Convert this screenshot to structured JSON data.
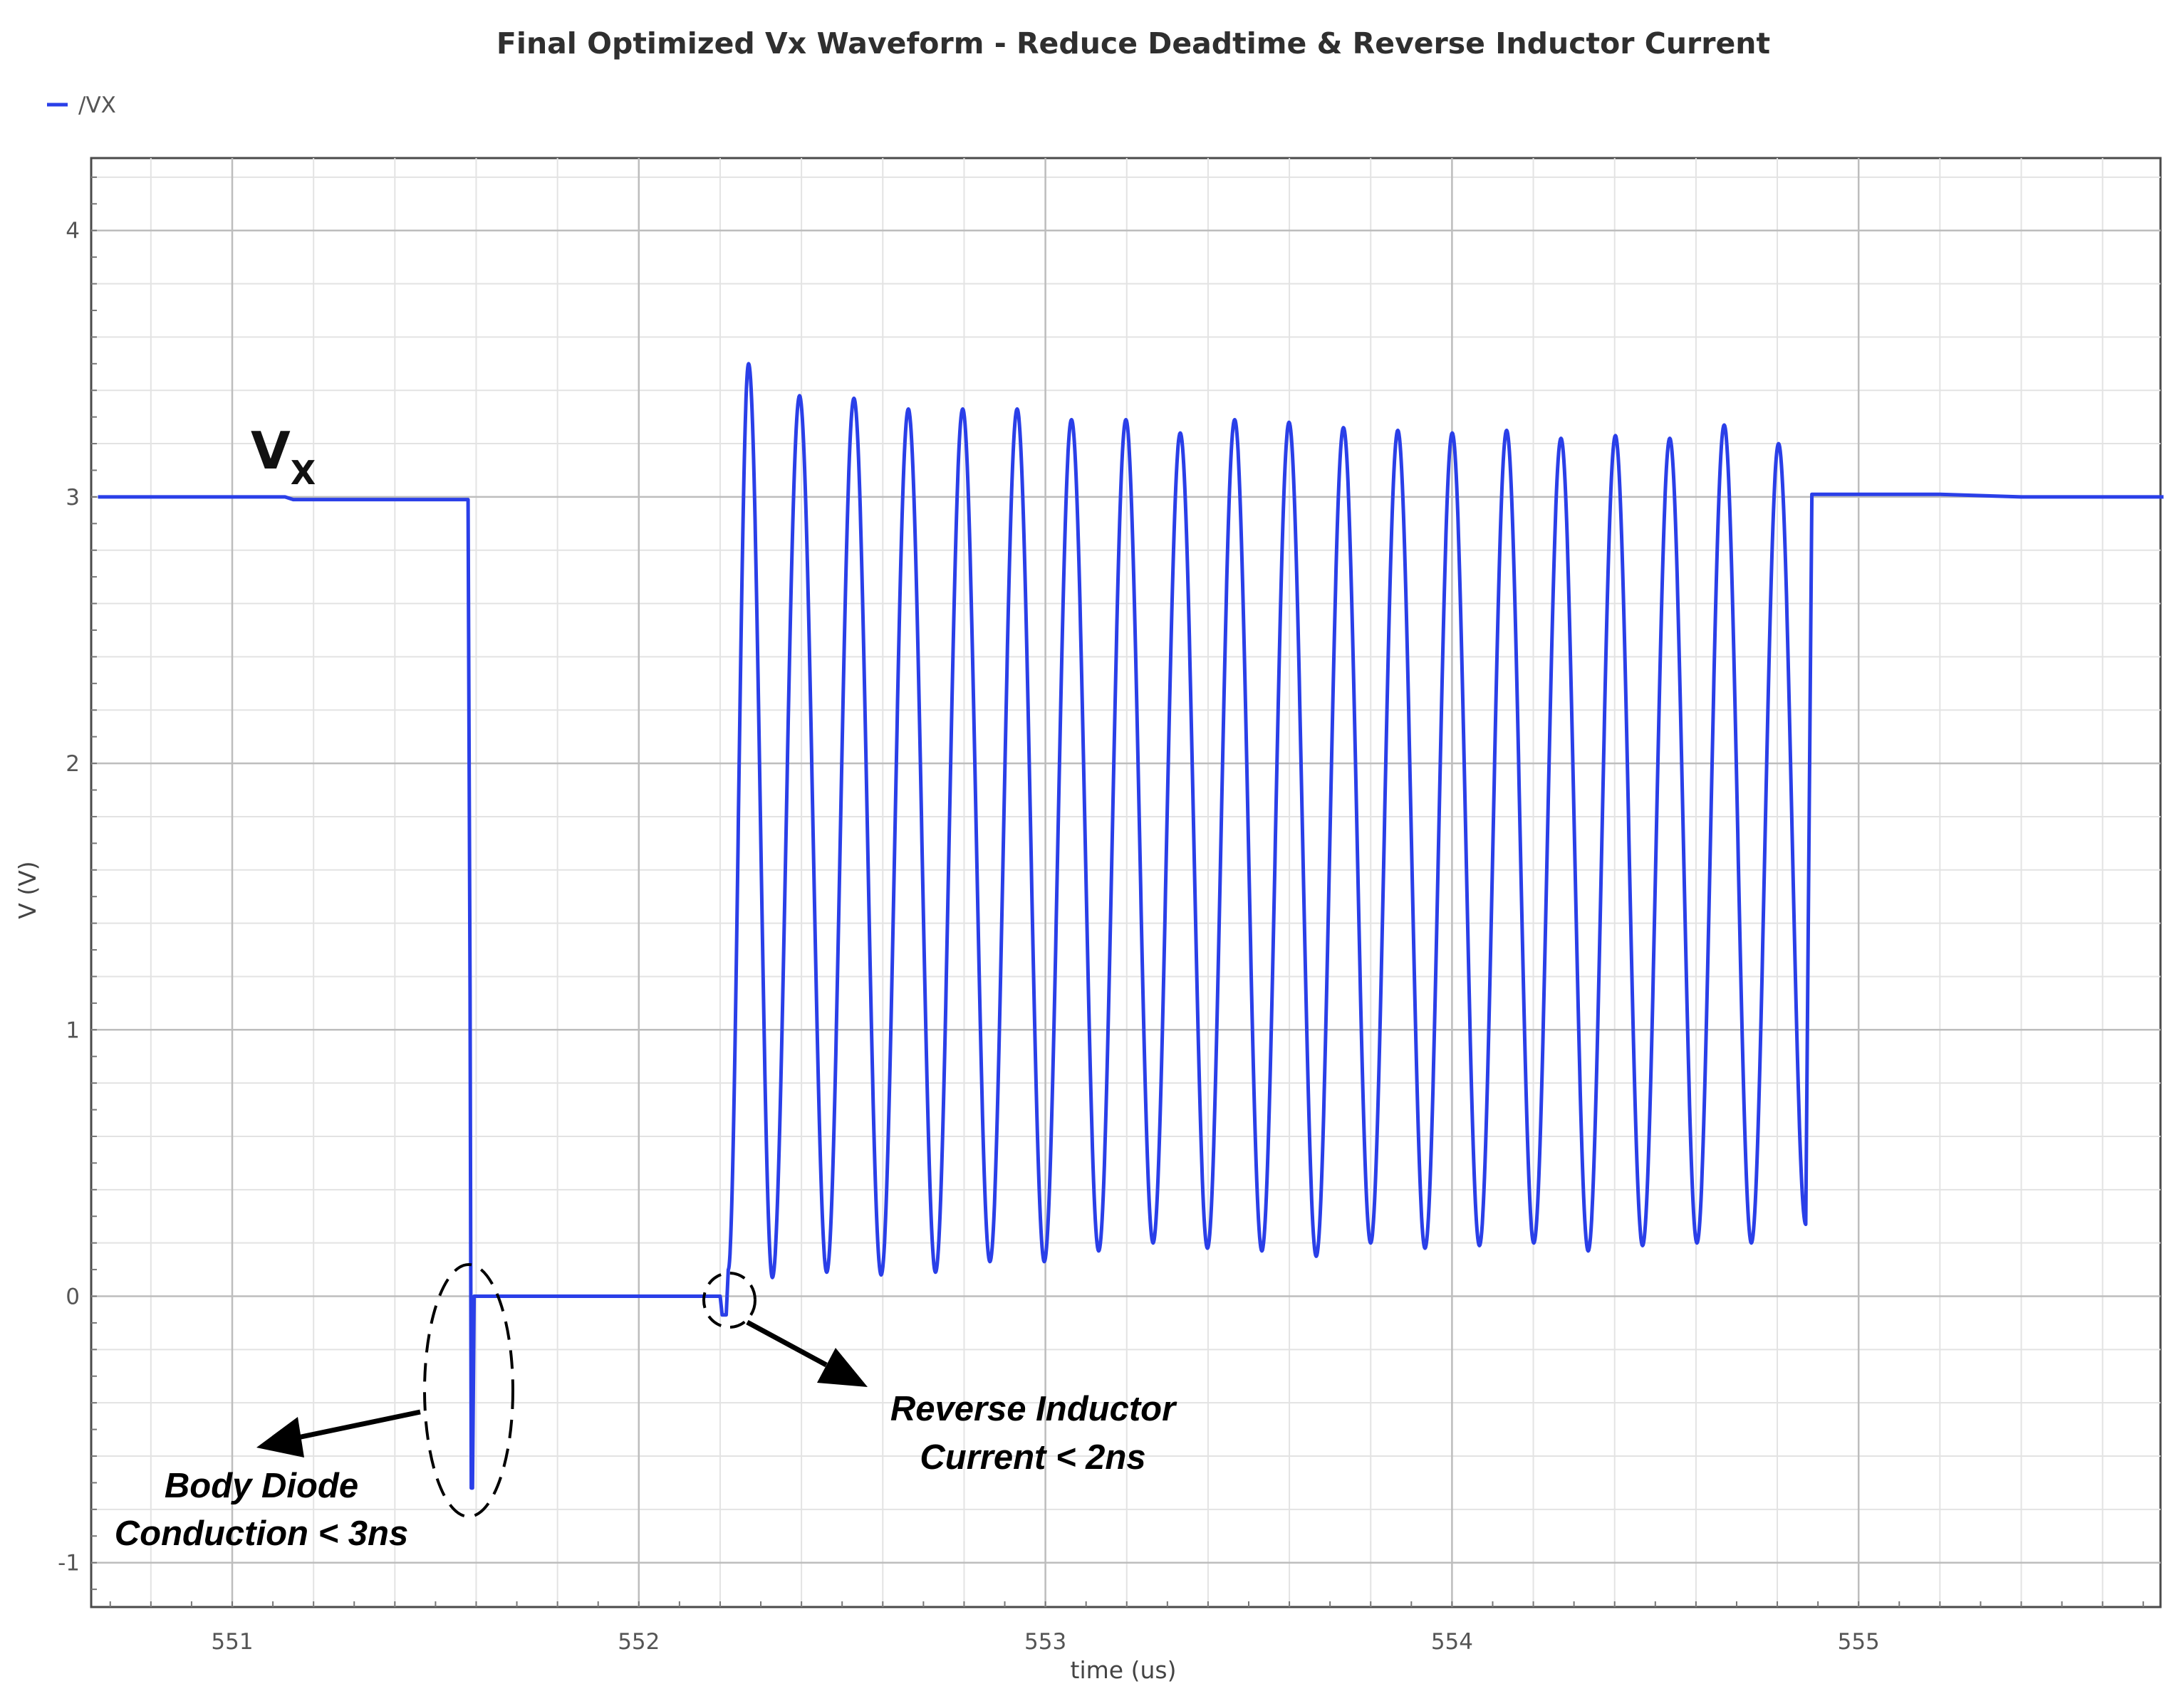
{
  "chart_data": {
    "type": "line",
    "title": "Final Optimized Vx Waveform - Reduce Deadtime & Reverse Inductor Current",
    "xlabel": "time (us)",
    "ylabel": "V (V)",
    "xlim": [
      550.67,
      555.75
    ],
    "ylim": [
      -1.15,
      4.4
    ],
    "xticks": [
      551,
      552,
      553,
      554,
      555
    ],
    "xtick_labels": [
      "551",
      "552",
      "553",
      "554",
      "555"
    ],
    "yticks": [
      -1,
      0,
      1,
      2,
      3,
      4
    ],
    "ytick_labels": [
      "-1",
      "0",
      "1",
      "2",
      "3",
      "4"
    ],
    "grid": true,
    "minor_grid": true,
    "legend": {
      "position": "top-left",
      "entries": [
        "/VX"
      ]
    },
    "series": [
      {
        "name": "/VX",
        "color": "#2a3fe8",
        "segments": [
          {
            "kind": "points",
            "x": [
              550.67,
              551.13,
              551.15,
              551.58,
              551.585,
              551.588,
              551.591,
              551.595,
              551.6,
              551.62,
              552.0,
              552.2
            ],
            "y": [
              3.0,
              3.0,
              2.99,
              2.99,
              1.15,
              -0.72,
              -0.72,
              0.0,
              0.0,
              0.0,
              0.0,
              0.0
            ]
          },
          {
            "kind": "points",
            "x": [
              552.2,
              552.205,
              552.215,
              552.22
            ],
            "y": [
              0.0,
              -0.07,
              -0.07,
              0.1
            ]
          },
          {
            "kind": "ringing",
            "start": 552.22,
            "end": 554.87,
            "peaks": [
              3.5,
              3.38,
              3.37,
              3.33,
              3.33,
              3.33,
              3.29,
              3.29,
              3.24,
              3.29,
              3.28,
              3.26,
              3.25,
              3.24,
              3.25,
              3.22,
              3.23,
              3.22,
              3.27,
              3.2
            ],
            "troughs": [
              0.07,
              0.09,
              0.08,
              0.09,
              0.13,
              0.13,
              0.17,
              0.2,
              0.18,
              0.17,
              0.15,
              0.2,
              0.18,
              0.19,
              0.2,
              0.17,
              0.19,
              0.2,
              0.2,
              0.27
            ]
          },
          {
            "kind": "points",
            "x": [
              554.87,
              554.885,
              555.2,
              555.4,
              555.75
            ],
            "y": [
              0.27,
              3.01,
              3.01,
              3.0,
              3.0
            ]
          }
        ]
      }
    ],
    "annotations": [
      {
        "text": "V",
        "subscript": "X",
        "x": 551.12,
        "y": 3.18
      },
      {
        "text_lines": [
          "Body Diode",
          "Conduction < 3ns"
        ],
        "points_to": [
          551.59,
          -0.4
        ]
      },
      {
        "text_lines": [
          "Reverse Inductor",
          "Current < 2ns"
        ],
        "points_to": [
          552.21,
          0.0
        ]
      }
    ]
  }
}
